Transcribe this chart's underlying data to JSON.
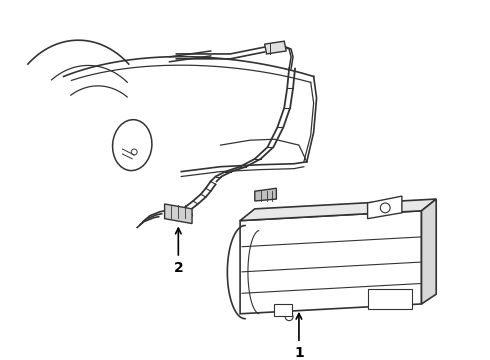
{
  "background_color": "#ffffff",
  "line_color": "#333333",
  "line_width": 1.0,
  "figsize": [
    4.9,
    3.6
  ],
  "dpi": 100,
  "label_1_text": "1",
  "label_2_text": "2",
  "label_fontsize": 10
}
